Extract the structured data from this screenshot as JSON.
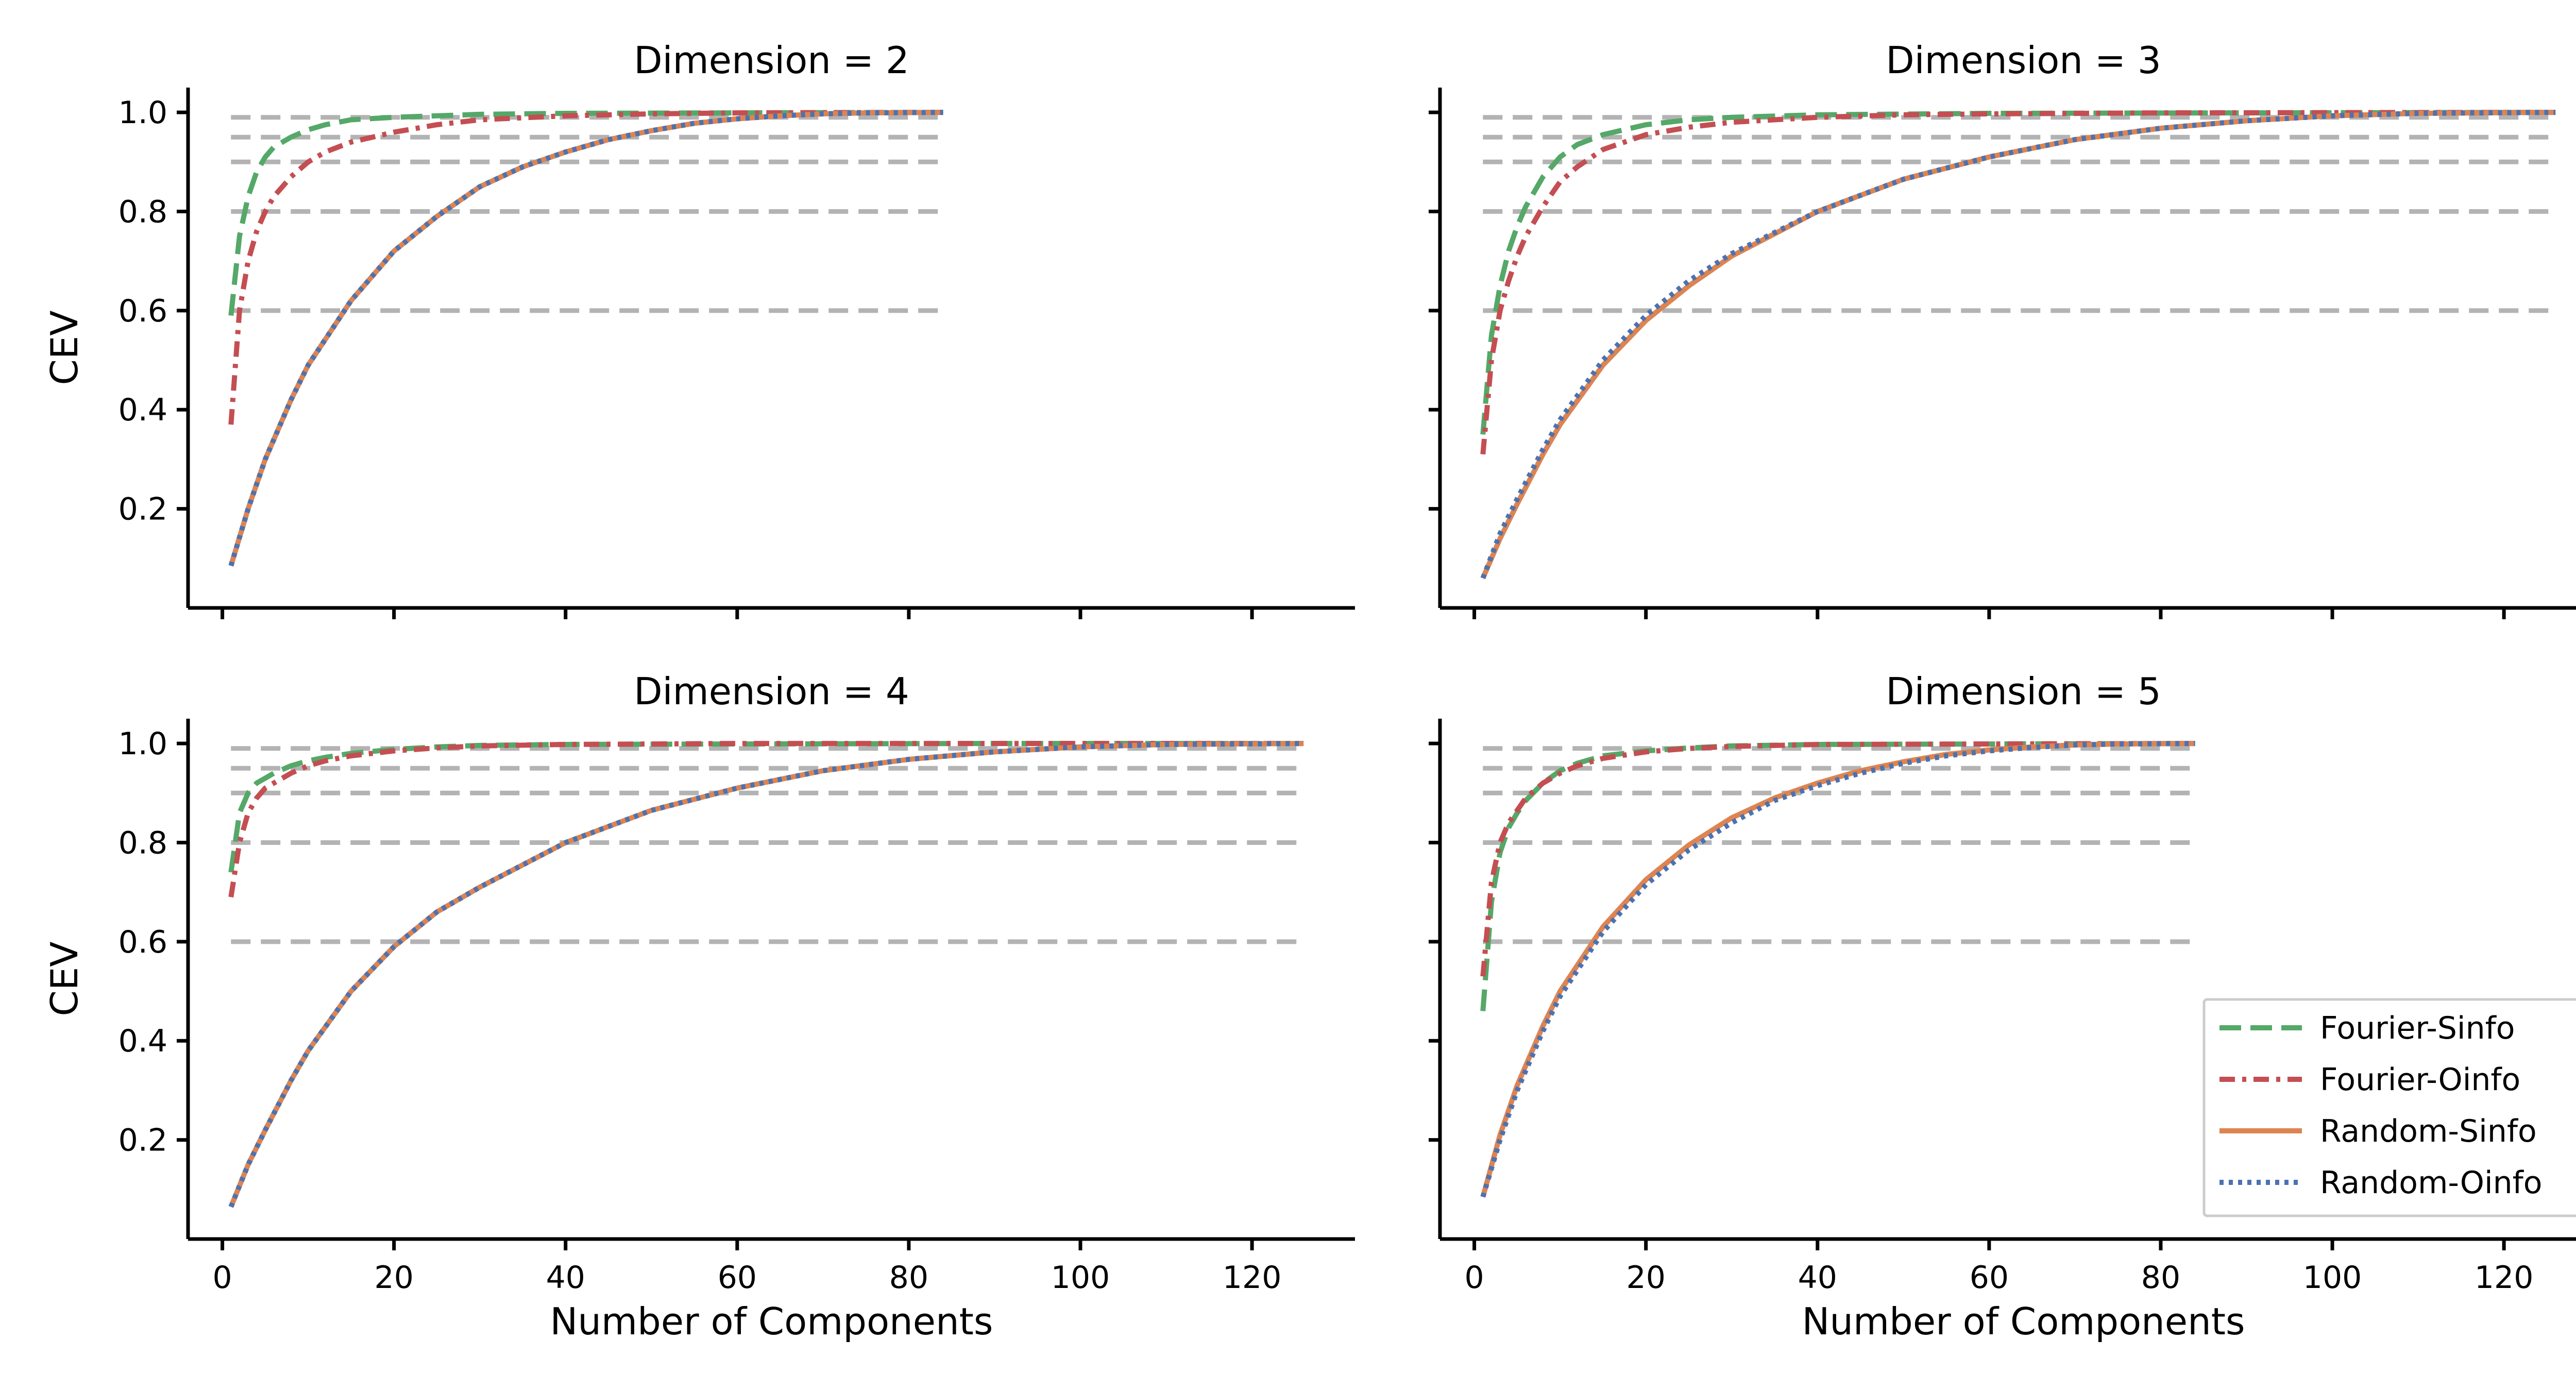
{
  "chart_data": {
    "type": "line",
    "xlabel": "Number of Components",
    "ylabel": "CEV",
    "xlim": [
      -4,
      132
    ],
    "ylim": [
      0.0,
      1.05
    ],
    "xticks": [
      0,
      20,
      40,
      60,
      80,
      100,
      120
    ],
    "yticks": [
      0.2,
      0.4,
      0.6,
      0.8,
      1.0
    ],
    "xtick_labels": [
      "0",
      "20",
      "40",
      "60",
      "80",
      "100",
      "120"
    ],
    "ytick_labels": [
      "0.2",
      "0.4",
      "0.6",
      "0.8",
      "1.0"
    ],
    "thresholds": [
      0.6,
      0.8,
      0.9,
      0.95,
      0.99
    ],
    "colors": {
      "fourier_sinfo": "#55a868",
      "fourier_oinfo": "#c44e52",
      "random_sinfo": "#dd8452",
      "random_oinfo": "#4c72b0",
      "threshold": "#b3b3b3",
      "legend_border": "#cccccc"
    },
    "legend": {
      "placement": "lower-right of Dimension = 5 panel",
      "entries": [
        "Fourier-Sinfo",
        "Fourier-Oinfo",
        "Random-Sinfo",
        "Random-Oinfo"
      ]
    },
    "panels": [
      {
        "title": "Dimension = 2",
        "x_max": 84,
        "series": [
          {
            "name": "Fourier-Sinfo",
            "x": [
              1,
              2,
              3,
              4,
              5,
              6,
              8,
              10,
              12,
              15,
              20,
              30,
              40,
              60,
              84
            ],
            "y": [
              0.59,
              0.75,
              0.83,
              0.88,
              0.91,
              0.93,
              0.95,
              0.965,
              0.975,
              0.985,
              0.99,
              0.996,
              0.998,
              0.999,
              1.0
            ]
          },
          {
            "name": "Fourier-Oinfo",
            "x": [
              1,
              2,
              3,
              4,
              5,
              6,
              8,
              10,
              12,
              15,
              20,
              25,
              30,
              40,
              50,
              60,
              84
            ],
            "y": [
              0.37,
              0.6,
              0.7,
              0.76,
              0.8,
              0.83,
              0.87,
              0.9,
              0.92,
              0.94,
              0.96,
              0.975,
              0.985,
              0.993,
              0.997,
              0.999,
              1.0
            ]
          },
          {
            "name": "Random-Sinfo",
            "x": [
              1,
              3,
              5,
              8,
              10,
              15,
              20,
              25,
              30,
              35,
              40,
              45,
              50,
              55,
              60,
              65,
              70,
              75,
              84
            ],
            "y": [
              0.085,
              0.2,
              0.3,
              0.42,
              0.49,
              0.62,
              0.72,
              0.79,
              0.85,
              0.89,
              0.92,
              0.945,
              0.963,
              0.978,
              0.987,
              0.993,
              0.997,
              0.999,
              1.0
            ]
          },
          {
            "name": "Random-Oinfo",
            "x": [
              1,
              3,
              5,
              8,
              10,
              15,
              20,
              25,
              30,
              35,
              40,
              45,
              50,
              55,
              60,
              65,
              70,
              75,
              84
            ],
            "y": [
              0.085,
              0.2,
              0.3,
              0.42,
              0.49,
              0.62,
              0.72,
              0.79,
              0.85,
              0.89,
              0.92,
              0.945,
              0.963,
              0.978,
              0.987,
              0.993,
              0.997,
              0.999,
              1.0
            ]
          }
        ]
      },
      {
        "title": "Dimension = 3",
        "x_max": 126,
        "series": [
          {
            "name": "Fourier-Sinfo",
            "x": [
              1,
              2,
              3,
              4,
              5,
              6,
              8,
              10,
              12,
              15,
              20,
              25,
              30,
              40,
              60,
              90,
              126
            ],
            "y": [
              0.35,
              0.55,
              0.65,
              0.72,
              0.77,
              0.81,
              0.87,
              0.91,
              0.935,
              0.955,
              0.975,
              0.985,
              0.99,
              0.995,
              0.998,
              0.999,
              1.0
            ]
          },
          {
            "name": "Fourier-Oinfo",
            "x": [
              1,
              2,
              3,
              4,
              5,
              6,
              8,
              10,
              12,
              15,
              20,
              25,
              30,
              40,
              50,
              60,
              80,
              126
            ],
            "y": [
              0.31,
              0.5,
              0.6,
              0.66,
              0.71,
              0.75,
              0.81,
              0.86,
              0.89,
              0.925,
              0.955,
              0.97,
              0.98,
              0.99,
              0.995,
              0.997,
              0.999,
              1.0
            ]
          },
          {
            "name": "Random-Sinfo",
            "x": [
              1,
              3,
              5,
              8,
              10,
              15,
              20,
              25,
              30,
              40,
              50,
              60,
              70,
              80,
              90,
              100,
              110,
              126
            ],
            "y": [
              0.06,
              0.14,
              0.21,
              0.31,
              0.37,
              0.49,
              0.58,
              0.65,
              0.71,
              0.8,
              0.865,
              0.91,
              0.945,
              0.968,
              0.983,
              0.993,
              0.998,
              1.0
            ]
          },
          {
            "name": "Random-Oinfo",
            "x": [
              1,
              3,
              5,
              8,
              10,
              15,
              20,
              25,
              30,
              40,
              50,
              60,
              70,
              80,
              90,
              100,
              110,
              126
            ],
            "y": [
              0.06,
              0.15,
              0.22,
              0.32,
              0.38,
              0.5,
              0.59,
              0.66,
              0.715,
              0.8,
              0.865,
              0.91,
              0.945,
              0.968,
              0.983,
              0.993,
              0.998,
              1.0
            ]
          }
        ]
      },
      {
        "title": "Dimension = 4",
        "x_max": 126,
        "series": [
          {
            "name": "Fourier-Sinfo",
            "x": [
              1,
              2,
              3,
              4,
              5,
              6,
              8,
              10,
              12,
              15,
              20,
              25,
              30,
              40,
              60,
              90,
              126
            ],
            "y": [
              0.74,
              0.86,
              0.9,
              0.92,
              0.93,
              0.94,
              0.955,
              0.965,
              0.972,
              0.98,
              0.988,
              0.993,
              0.996,
              0.998,
              0.999,
              1.0,
              1.0
            ]
          },
          {
            "name": "Fourier-Oinfo",
            "x": [
              1,
              2,
              3,
              4,
              5,
              6,
              8,
              10,
              12,
              15,
              20,
              25,
              30,
              40,
              50,
              60,
              80,
              126
            ],
            "y": [
              0.69,
              0.8,
              0.86,
              0.89,
              0.91,
              0.92,
              0.94,
              0.955,
              0.965,
              0.975,
              0.985,
              0.991,
              0.995,
              0.998,
              0.999,
              1.0,
              1.0,
              1.0
            ]
          },
          {
            "name": "Random-Sinfo",
            "x": [
              1,
              3,
              5,
              8,
              10,
              15,
              20,
              25,
              30,
              40,
              50,
              60,
              70,
              80,
              90,
              100,
              110,
              126
            ],
            "y": [
              0.065,
              0.15,
              0.22,
              0.32,
              0.38,
              0.5,
              0.59,
              0.66,
              0.71,
              0.8,
              0.865,
              0.91,
              0.945,
              0.968,
              0.983,
              0.993,
              0.998,
              1.0
            ]
          },
          {
            "name": "Random-Oinfo",
            "x": [
              1,
              3,
              5,
              8,
              10,
              15,
              20,
              25,
              30,
              40,
              50,
              60,
              70,
              80,
              90,
              100,
              110,
              126
            ],
            "y": [
              0.065,
              0.15,
              0.22,
              0.32,
              0.38,
              0.5,
              0.59,
              0.66,
              0.71,
              0.8,
              0.865,
              0.91,
              0.945,
              0.968,
              0.983,
              0.993,
              0.998,
              1.0
            ]
          }
        ]
      },
      {
        "title": "Dimension = 5",
        "x_max": 84,
        "series": [
          {
            "name": "Fourier-Sinfo",
            "x": [
              1,
              2,
              3,
              4,
              5,
              6,
              8,
              10,
              12,
              15,
              20,
              25,
              30,
              40,
              60,
              84
            ],
            "y": [
              0.46,
              0.68,
              0.78,
              0.83,
              0.86,
              0.885,
              0.92,
              0.945,
              0.96,
              0.975,
              0.985,
              0.991,
              0.995,
              0.998,
              0.999,
              1.0
            ]
          },
          {
            "name": "Fourier-Oinfo",
            "x": [
              1,
              2,
              3,
              4,
              5,
              6,
              8,
              10,
              12,
              15,
              20,
              25,
              30,
              40,
              60,
              84
            ],
            "y": [
              0.53,
              0.72,
              0.8,
              0.84,
              0.865,
              0.89,
              0.92,
              0.94,
              0.955,
              0.97,
              0.983,
              0.99,
              0.994,
              0.998,
              0.999,
              1.0
            ]
          },
          {
            "name": "Random-Sinfo",
            "x": [
              1,
              3,
              5,
              8,
              10,
              15,
              20,
              25,
              30,
              35,
              40,
              45,
              50,
              55,
              60,
              65,
              70,
              75,
              84
            ],
            "y": [
              0.085,
              0.21,
              0.31,
              0.43,
              0.5,
              0.63,
              0.725,
              0.795,
              0.85,
              0.89,
              0.92,
              0.945,
              0.963,
              0.978,
              0.987,
              0.993,
              0.997,
              0.999,
              1.0
            ]
          },
          {
            "name": "Random-Oinfo",
            "x": [
              1,
              3,
              5,
              8,
              10,
              15,
              20,
              25,
              30,
              35,
              40,
              45,
              50,
              55,
              60,
              65,
              70,
              75,
              84
            ],
            "y": [
              0.085,
              0.2,
              0.3,
              0.42,
              0.49,
              0.62,
              0.715,
              0.785,
              0.84,
              0.885,
              0.915,
              0.94,
              0.96,
              0.975,
              0.985,
              0.992,
              0.997,
              0.999,
              1.0
            ]
          }
        ]
      }
    ]
  }
}
